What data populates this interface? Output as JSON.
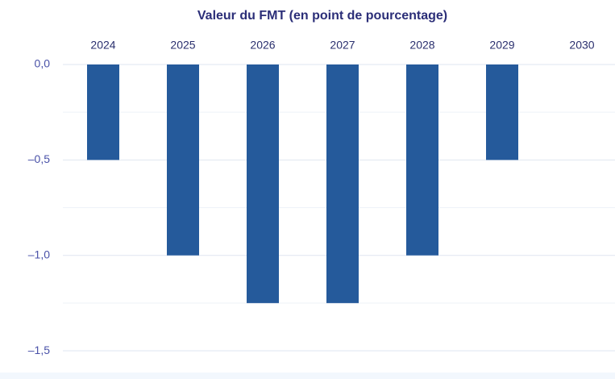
{
  "chart_data": {
    "type": "bar",
    "title": "Valeur du FMT (en point de pourcentage)",
    "categories": [
      "2024",
      "2025",
      "2026",
      "2027",
      "2028",
      "2029",
      "2030"
    ],
    "values": [
      -0.5,
      -1.0,
      -1.25,
      -1.25,
      -1.0,
      -0.5,
      0
    ],
    "color": "#255a9b",
    "ylim": [
      -1.6,
      0
    ],
    "yticks": [
      {
        "value": 0,
        "label": "0,0"
      },
      {
        "value": -0.5,
        "label": "–0,5"
      },
      {
        "value": -1.0,
        "label": "–1,0"
      },
      {
        "value": -1.5,
        "label": "–1,5"
      }
    ],
    "minor_yticks": [
      -0.25,
      -0.75,
      -1.25
    ],
    "grid": true
  }
}
